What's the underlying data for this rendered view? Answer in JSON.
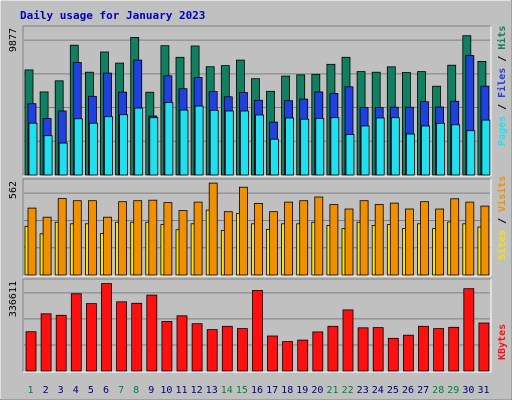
{
  "chart_data": [
    {
      "type": "bar",
      "panel": "hits-files-pages",
      "title": "Daily usage for January 2023",
      "ymax_label": "9877",
      "ymax": 9877,
      "side_label_parts": [
        "Pages",
        "Files",
        "Hits"
      ],
      "categories": [
        "1",
        "2",
        "3",
        "4",
        "5",
        "6",
        "7",
        "8",
        "9",
        "10",
        "11",
        "12",
        "13",
        "14",
        "15",
        "16",
        "17",
        "18",
        "19",
        "20",
        "21",
        "22",
        "23",
        "24",
        "25",
        "26",
        "27",
        "28",
        "29",
        "30",
        "31"
      ],
      "series": [
        {
          "name": "Hits",
          "color": "#108060",
          "values": [
            7160,
            5660,
            6420,
            8840,
            7000,
            8380,
            7620,
            9370,
            5640,
            8810,
            8020,
            8790,
            7380,
            7450,
            7830,
            6560,
            5700,
            6740,
            6820,
            6860,
            7540,
            8020,
            7040,
            7000,
            7370,
            6980,
            7040,
            6050,
            7480,
            9490,
            7740
          ]
        },
        {
          "name": "Files",
          "color": "#2040e0",
          "values": [
            4860,
            3850,
            4360,
            7660,
            5360,
            6940,
            5650,
            7830,
            4020,
            6760,
            5880,
            6640,
            5690,
            5330,
            5620,
            5090,
            3600,
            5060,
            5170,
            5660,
            5560,
            6010,
            4600,
            4590,
            4620,
            4620,
            4990,
            4630,
            5020,
            8140,
            6050
          ]
        },
        {
          "name": "Pages",
          "color": "#20e0f0",
          "values": [
            3530,
            2680,
            2170,
            3830,
            3530,
            3970,
            4110,
            4560,
            3900,
            4930,
            4420,
            4690,
            4410,
            4360,
            4360,
            4090,
            2440,
            3880,
            3800,
            3850,
            3900,
            2750,
            3340,
            3880,
            3900,
            2790,
            3340,
            3520,
            3420,
            3020,
            3740
          ]
        }
      ]
    },
    {
      "type": "bar",
      "panel": "visits-sites",
      "ymax_label": "562",
      "ymax": 562,
      "side_label_parts": [
        "Sites",
        "Visits"
      ],
      "categories": [
        "1",
        "2",
        "3",
        "4",
        "5",
        "6",
        "7",
        "8",
        "9",
        "10",
        "11",
        "12",
        "13",
        "14",
        "15",
        "16",
        "17",
        "18",
        "19",
        "20",
        "21",
        "22",
        "23",
        "24",
        "25",
        "26",
        "27",
        "28",
        "29",
        "30",
        "31"
      ],
      "series": [
        {
          "name": "Visits",
          "color": "#f09000",
          "values": [
            418,
            361,
            477,
            464,
            464,
            361,
            458,
            464,
            467,
            452,
            403,
            455,
            574,
            395,
            548,
            447,
            395,
            455,
            464,
            487,
            440,
            412,
            464,
            440,
            449,
            412,
            458,
            412,
            476,
            455,
            430
          ]
        },
        {
          "name": "Sites",
          "color": "#ffe000",
          "values": [
            304,
            257,
            330,
            320,
            320,
            259,
            330,
            330,
            330,
            315,
            283,
            320,
            405,
            277,
            384,
            320,
            285,
            320,
            320,
            330,
            310,
            290,
            330,
            310,
            315,
            290,
            320,
            290,
            331,
            320,
            300
          ]
        }
      ]
    },
    {
      "type": "bar",
      "panel": "kbytes",
      "ymax_label": "336611",
      "ymax": 336611,
      "side_label_parts": [
        "KBytes"
      ],
      "categories": [
        "1",
        "2",
        "3",
        "4",
        "5",
        "6",
        "7",
        "8",
        "9",
        "10",
        "11",
        "12",
        "13",
        "14",
        "15",
        "16",
        "17",
        "18",
        "19",
        "20",
        "21",
        "22",
        "23",
        "24",
        "25",
        "26",
        "27",
        "28",
        "29",
        "30",
        "31"
      ],
      "series": [
        {
          "name": "KBytes",
          "color": "#ff1010",
          "values": [
            154000,
            224000,
            218000,
            302000,
            264000,
            342000,
            271000,
            265000,
            297000,
            194000,
            216000,
            185000,
            162000,
            175000,
            166000,
            315000,
            137000,
            115000,
            121000,
            153000,
            175000,
            239000,
            169000,
            170000,
            128000,
            140000,
            175000,
            166000,
            171000,
            322000,
            188000
          ]
        }
      ]
    }
  ],
  "weekend_days": [
    "1",
    "7",
    "8",
    "14",
    "15",
    "21",
    "22",
    "28",
    "29"
  ],
  "colors": {
    "background": "#c0c0c0",
    "panel": "#c0c0c0",
    "frame_light": "#ffffff",
    "frame_dark": "#808080",
    "title": "#0000c0",
    "day_label": "#000080",
    "weekend_label": "#008040",
    "gridline": "#808080",
    "bar_outline": "#000000"
  }
}
